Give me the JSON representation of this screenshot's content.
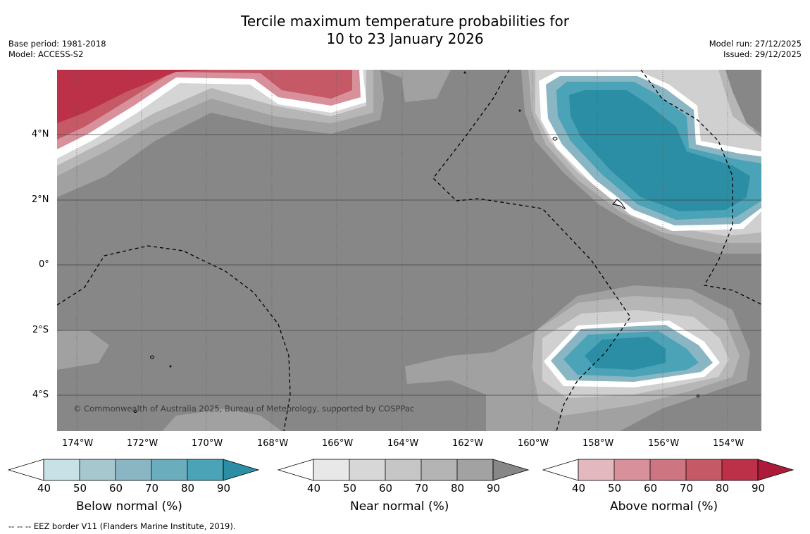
{
  "title": {
    "line1": "Tercile maximum temperature probabilities for",
    "line2": "10 to 23 January 2026"
  },
  "meta_left": {
    "base_period": "Base period: 1981-2018",
    "model": "Model: ACCESS-S2"
  },
  "meta_right": {
    "model_run": "Model run: 27/12/2025",
    "issued": "Issued: 29/12/2025"
  },
  "map": {
    "x_ticks": [
      "174°W",
      "172°W",
      "170°W",
      "168°W",
      "166°W",
      "164°W",
      "162°W",
      "160°W",
      "158°W",
      "156°W",
      "154°W"
    ],
    "y_ticks": [
      "4°N",
      "2°N",
      "0°",
      "2°S",
      "4°S"
    ],
    "copyright": "© Commonwealth of Australia 2025, Bureau of Meteorology, supported by COSPPac",
    "colors": {
      "near_bg": "#878787",
      "near_mid": "#a1a1a1",
      "near_light": "#b6b6b6",
      "near_lighter": "#c8c8c8",
      "blue_dark": "#2c8ea4",
      "red_dark": "#b5203f"
    }
  },
  "colorbars": {
    "ticks": [
      "40",
      "50",
      "60",
      "70",
      "80",
      "90"
    ],
    "below": {
      "label": "Below normal (%)",
      "colors": [
        "#ffffff",
        "#c7e1e7",
        "#a6c7cd",
        "#8ab5c3",
        "#6aaebd",
        "#4aa3b6",
        "#2c8ea4"
      ]
    },
    "near": {
      "label": "Near normal (%)",
      "colors": [
        "#ffffff",
        "#e8e8e8",
        "#d7d7d7",
        "#c6c6c6",
        "#b4b4b4",
        "#a2a2a2",
        "#878787"
      ]
    },
    "above": {
      "label": "Above normal (%)",
      "colors": [
        "#ffffff",
        "#e3b8bf",
        "#d8919b",
        "#cd7580",
        "#c55966",
        "#bc3148",
        "#ad1b3a"
      ]
    }
  },
  "footer": "--  --  -- EEZ border V11 (Flanders Marine Institute, 2019)."
}
